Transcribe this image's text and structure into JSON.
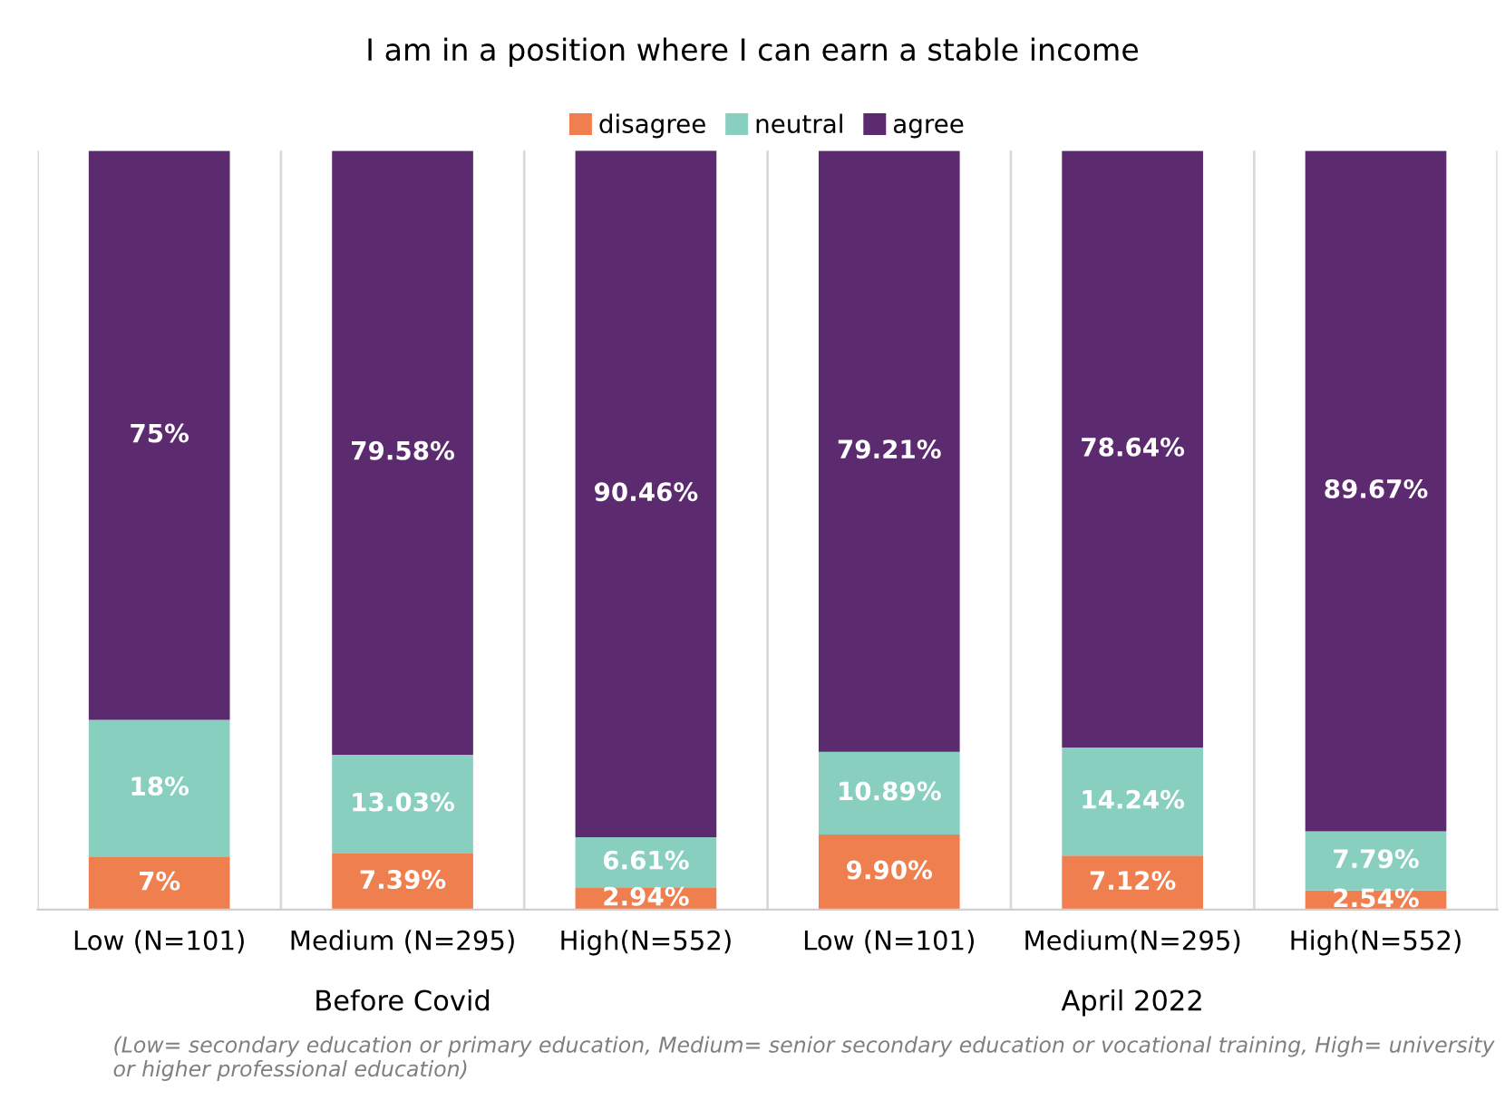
{
  "chart_data": {
    "type": "bar",
    "stacked": true,
    "title": "I am in a position where I can earn a stable income",
    "categories": [
      "Low (N=101)",
      "Medium (N=295)",
      "High(N=552)",
      "Low (N=101)",
      "Medium(N=295)",
      "High(N=552)"
    ],
    "series": [
      {
        "name": "disagree",
        "color": "#f07f4f",
        "values": [
          7,
          7.39,
          2.94,
          9.9,
          7.12,
          2.54
        ],
        "value_labels": [
          "7%",
          "7.39%",
          "2.94%",
          "9.90%",
          "7.12%",
          "2.54%"
        ]
      },
      {
        "name": "neutral",
        "color": "#88cfc0",
        "values": [
          18,
          13.03,
          6.61,
          10.89,
          14.24,
          7.79
        ],
        "value_labels": [
          "18%",
          "13.03%",
          "6.61%",
          "10.89%",
          "14.24%",
          "7.79%"
        ]
      },
      {
        "name": "agree",
        "color": "#5c2a6e",
        "values": [
          75,
          79.58,
          90.46,
          79.21,
          78.64,
          89.67
        ],
        "value_labels": [
          "75%",
          "79.58%",
          "90.46%",
          "79.21%",
          "78.64%",
          "89.67%"
        ]
      }
    ],
    "tick_labels": "x",
    "legend": "top",
    "grid": "x",
    "annotations": [
      "Before Covid",
      "April 2022",
      "(Low= secondary education or primary education, Medium= senior secondary education or vocational training, High= university or higher professional education)"
    ]
  }
}
